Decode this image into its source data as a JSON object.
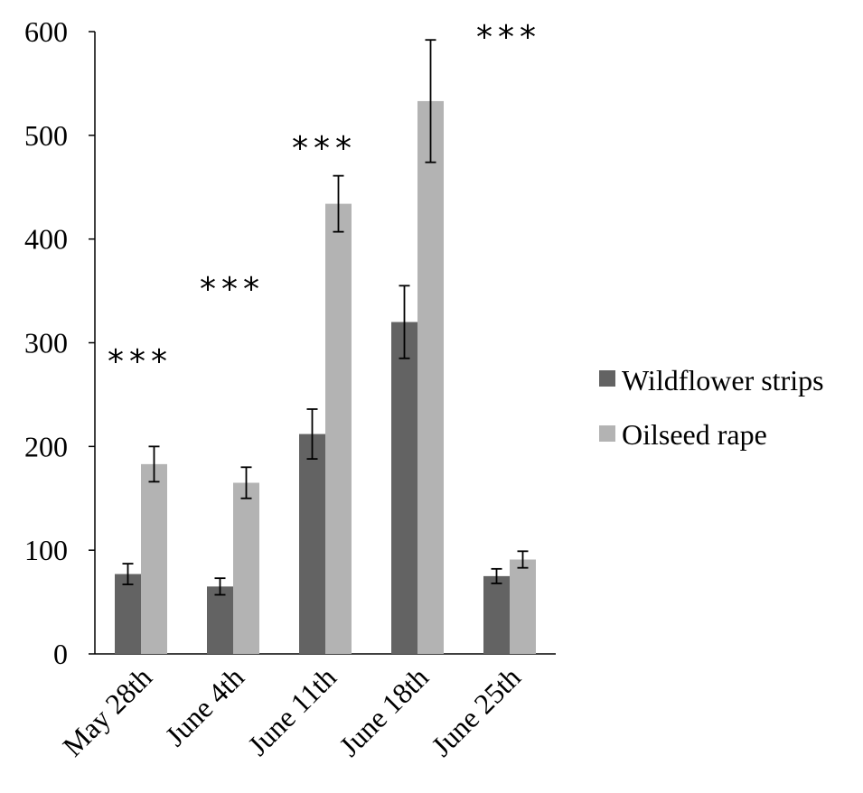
{
  "chart_data": {
    "type": "bar",
    "title": "",
    "xlabel": "",
    "ylabel": "",
    "categories": [
      "May 28th",
      "June 4th",
      "June 11th",
      "June 18th",
      "June 25th"
    ],
    "ylim": [
      0,
      600
    ],
    "yticks": [
      "0",
      "100",
      "200",
      "300",
      "400",
      "500",
      "600"
    ],
    "grid": false,
    "legend_position": "right",
    "series": [
      {
        "name": "Wildflower strips",
        "color": "#636363",
        "values": [
          77,
          65,
          212,
          320,
          75
        ],
        "errors": [
          10,
          8,
          24,
          35,
          7
        ]
      },
      {
        "name": "Oilseed rape",
        "color": "#b3b3b3",
        "values": [
          183,
          165,
          434,
          533,
          91
        ],
        "errors": [
          17,
          15,
          27,
          59,
          8
        ]
      }
    ],
    "significance": [
      "***",
      "***",
      "***",
      "",
      "***"
    ]
  }
}
